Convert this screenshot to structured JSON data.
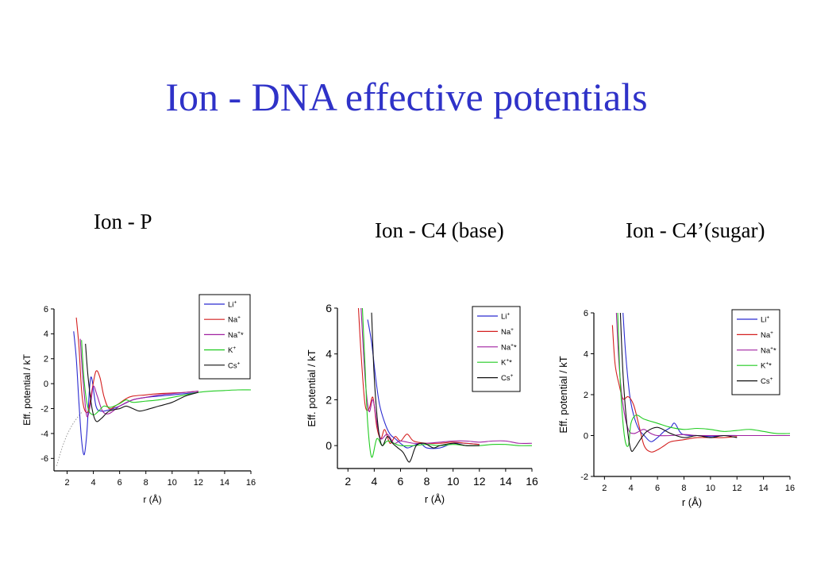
{
  "title": "Ion - DNA effective potentials",
  "chart_data": [
    {
      "type": "line",
      "title": "Ion - P",
      "xlabel": "r (Å)",
      "ylabel": "Eff. potential / kT",
      "xlim": [
        1,
        16
      ],
      "ylim": [
        -7,
        6
      ],
      "xticks": [
        "2",
        "4",
        "6",
        "8",
        "10",
        "12",
        "14",
        "16"
      ],
      "yticks": [
        "6",
        "4",
        "2",
        "0",
        "-2",
        "-4",
        "-6"
      ],
      "legend_position": "top-right",
      "series": [
        {
          "name": "Li",
          "sup": "+",
          "color": "#2b2bd0",
          "x": [
            2.5,
            2.7,
            2.9,
            3.1,
            3.3,
            3.5,
            3.8,
            4.2,
            4.6,
            5.2,
            6,
            7,
            8,
            9,
            10,
            11,
            12
          ],
          "y": [
            4.2,
            2.0,
            -1.5,
            -4.5,
            -5.7,
            -4.0,
            0.5,
            -1.8,
            -2.2,
            -2.1,
            -1.8,
            -1.3,
            -1.1,
            -1.0,
            -0.9,
            -0.8,
            -0.7
          ]
        },
        {
          "name": "Na",
          "sup": "+",
          "color": "#d42020",
          "x": [
            2.7,
            2.9,
            3.1,
            3.3,
            3.6,
            3.9,
            4.2,
            4.5,
            4.8,
            5.2,
            5.8,
            6.5,
            7,
            8,
            9,
            10,
            11,
            12
          ],
          "y": [
            5.3,
            3.0,
            -0.5,
            -2.0,
            -2.2,
            -0.5,
            1.0,
            0.5,
            -1.0,
            -2.0,
            -1.7,
            -1.2,
            -1.0,
            -0.9,
            -0.8,
            -0.75,
            -0.7,
            -0.6
          ]
        },
        {
          "name": "Na",
          "sup": "+",
          "mark": "*",
          "color": "#a020a0",
          "x": [
            3.0,
            3.2,
            3.5,
            3.8,
            4.0,
            4.3,
            4.7,
            5.2,
            6,
            7,
            8,
            9,
            10,
            11,
            12
          ],
          "y": [
            3.6,
            0.5,
            -2.6,
            -1.5,
            -0.2,
            -1.0,
            -2.2,
            -2.4,
            -1.8,
            -1.3,
            -1.1,
            -0.9,
            -0.8,
            -0.7,
            -0.6
          ]
        },
        {
          "name": "K",
          "sup": "+",
          "color": "#22cc22",
          "x": [
            3.1,
            3.3,
            3.6,
            4.0,
            4.4,
            4.8,
            5.3,
            6,
            6.5,
            7,
            8,
            9,
            10,
            11,
            12,
            13,
            14,
            15,
            16
          ],
          "y": [
            3.5,
            0.2,
            -2.0,
            -2.5,
            -2.2,
            -1.8,
            -1.9,
            -1.6,
            -1.3,
            -1.5,
            -1.4,
            -1.3,
            -1.1,
            -0.9,
            -0.7,
            -0.6,
            -0.55,
            -0.5,
            -0.5
          ]
        },
        {
          "name": "Cs",
          "sup": "+",
          "color": "#111111",
          "x": [
            3.4,
            3.6,
            3.9,
            4.2,
            4.6,
            5.2,
            6,
            6.5,
            7,
            7.5,
            8,
            9,
            10,
            11,
            12
          ],
          "y": [
            3.2,
            0.5,
            -2.0,
            -3.0,
            -2.8,
            -2.2,
            -2.0,
            -1.8,
            -2.0,
            -2.2,
            -2.1,
            -1.8,
            -1.5,
            -1.0,
            -0.7
          ]
        }
      ]
    },
    {
      "type": "line",
      "title": "Ion - C4 (base)",
      "xlabel": "r (Å)",
      "ylabel": "Eff. potential / kT",
      "xlim": [
        1.2,
        16
      ],
      "ylim": [
        -1,
        6
      ],
      "xticks": [
        "2",
        "4",
        "6",
        "8",
        "10",
        "12",
        "14",
        "16"
      ],
      "yticks": [
        "6",
        "4",
        "2",
        "0"
      ],
      "legend_position": "top-right",
      "series": [
        {
          "name": "Li",
          "sup": "+",
          "color": "#2b2bd0",
          "x": [
            3.5,
            3.8,
            4.1,
            4.4,
            4.8,
            5.2,
            5.6,
            6,
            6.5,
            7,
            7.5,
            8,
            9,
            10,
            11,
            12
          ],
          "y": [
            5.5,
            4.5,
            3.0,
            1.8,
            1.0,
            0.5,
            0.3,
            0.1,
            -0.1,
            0.0,
            0.1,
            -0.1,
            -0.1,
            0.1,
            0.1,
            0.05
          ]
        },
        {
          "name": "Na",
          "sup": "+",
          "color": "#d42020",
          "x": [
            2.8,
            3.0,
            3.3,
            3.6,
            3.9,
            4.2,
            4.5,
            4.8,
            5.2,
            5.6,
            6,
            6.5,
            7,
            8,
            9,
            10,
            11,
            12
          ],
          "y": [
            6.0,
            4.0,
            1.8,
            1.6,
            2.1,
            0.8,
            0.3,
            0.7,
            0.1,
            0.4,
            0.2,
            0.5,
            0.2,
            0.1,
            0.1,
            0.15,
            0.1,
            0.05
          ]
        },
        {
          "name": "Na",
          "sup": "+",
          "mark": "*",
          "color": "#a020a0",
          "x": [
            3.0,
            3.3,
            3.6,
            3.9,
            4.2,
            4.5,
            5.0,
            5.5,
            6,
            7,
            8,
            9,
            10,
            11,
            12,
            13,
            14,
            15,
            16
          ],
          "y": [
            6.0,
            3.0,
            1.5,
            2.0,
            1.0,
            0.3,
            0.5,
            0.1,
            0.2,
            0.1,
            0.1,
            0.15,
            0.2,
            0.2,
            0.15,
            0.2,
            0.2,
            0.1,
            0.1
          ]
        },
        {
          "name": "K",
          "sup": "+",
          "mark": "*",
          "color": "#22cc22",
          "x": [
            3.1,
            3.3,
            3.5,
            3.8,
            4.2,
            4.6,
            5.0,
            5.5,
            6,
            7,
            8,
            9,
            10,
            11,
            12,
            13,
            14,
            15,
            16
          ],
          "y": [
            6.0,
            3.5,
            1.0,
            -0.5,
            0.3,
            0.0,
            0.2,
            0.1,
            0.0,
            0.0,
            0.05,
            0.0,
            0.05,
            0.0,
            0.0,
            0.05,
            0.05,
            0.0,
            0.0
          ]
        },
        {
          "name": "Cs",
          "sup": "+",
          "color": "#111111",
          "x": [
            3.8,
            4.0,
            4.3,
            4.6,
            5.0,
            5.4,
            5.8,
            6.2,
            6.6,
            6.8,
            7.2,
            7.8,
            8.5,
            9,
            10,
            11,
            12
          ],
          "y": [
            5.8,
            3.0,
            0.8,
            0.0,
            0.4,
            0.1,
            -0.1,
            -0.3,
            -0.7,
            -0.6,
            0.0,
            0.1,
            -0.1,
            0.0,
            0.1,
            0.0,
            0.0
          ]
        }
      ]
    },
    {
      "type": "line",
      "title": "Ion - C4’(sugar)",
      "xlabel": "r (Å)",
      "ylabel": "Eff. potential / kT",
      "xlim": [
        1.2,
        16
      ],
      "ylim": [
        -2,
        6
      ],
      "xticks": [
        "2",
        "4",
        "6",
        "8",
        "10",
        "12",
        "14",
        "16"
      ],
      "yticks": [
        "6",
        "4",
        "2",
        "0",
        "-2"
      ],
      "legend_position": "top-right",
      "series": [
        {
          "name": "Li",
          "sup": "+",
          "color": "#2b2bd0",
          "x": [
            3.4,
            3.6,
            3.9,
            4.2,
            4.6,
            5.0,
            5.5,
            6,
            6.5,
            7,
            7.3,
            7.8,
            8.5,
            9,
            10,
            11,
            12
          ],
          "y": [
            6.0,
            4.0,
            2.0,
            1.0,
            0.3,
            0.0,
            -0.3,
            -0.1,
            0.2,
            0.4,
            0.6,
            0.1,
            0.0,
            0.0,
            -0.05,
            0.0,
            0.0
          ]
        },
        {
          "name": "Na",
          "sup": "+",
          "color": "#d42020",
          "x": [
            2.6,
            2.8,
            3.1,
            3.4,
            3.8,
            4.2,
            4.6,
            5.0,
            5.5,
            6,
            6.5,
            7,
            8,
            9,
            10,
            11,
            12
          ],
          "y": [
            5.4,
            3.5,
            2.5,
            1.8,
            1.9,
            1.5,
            0.5,
            -0.5,
            -0.8,
            -0.7,
            -0.5,
            -0.3,
            -0.2,
            -0.1,
            -0.1,
            -0.1,
            -0.05
          ]
        },
        {
          "name": "Na",
          "sup": "+",
          "mark": "*",
          "color": "#a020a0",
          "x": [
            2.9,
            3.1,
            3.4,
            3.8,
            4.2,
            4.6,
            5.0,
            5.5,
            6,
            7,
            8,
            9,
            10,
            11,
            12,
            13,
            14,
            15,
            16
          ],
          "y": [
            6.0,
            3.5,
            1.5,
            0.3,
            0.1,
            0.2,
            0.3,
            0.1,
            0.0,
            0.0,
            0.05,
            0.0,
            0.0,
            0.0,
            0.0,
            0.0,
            0.0,
            0.0,
            0.0
          ]
        },
        {
          "name": "K",
          "sup": "+",
          "mark": "*",
          "color": "#22cc22",
          "x": [
            3.0,
            3.2,
            3.5,
            3.8,
            4.0,
            4.4,
            5,
            6,
            7,
            8,
            9,
            10,
            11,
            12,
            13,
            14,
            15,
            16
          ],
          "y": [
            6.0,
            2.5,
            0.0,
            -0.5,
            0.6,
            1.0,
            0.8,
            0.6,
            0.4,
            0.3,
            0.35,
            0.3,
            0.2,
            0.25,
            0.3,
            0.2,
            0.1,
            0.1
          ]
        },
        {
          "name": "Cs",
          "sup": "+",
          "color": "#111111",
          "x": [
            3.2,
            3.4,
            3.7,
            4.0,
            4.3,
            4.7,
            5.2,
            6,
            7,
            8,
            9,
            10,
            11,
            12
          ],
          "y": [
            6.0,
            3.0,
            0.5,
            -0.7,
            -0.6,
            -0.2,
            0.2,
            0.4,
            0.1,
            -0.1,
            0.0,
            -0.1,
            0.0,
            -0.1
          ]
        }
      ]
    }
  ]
}
